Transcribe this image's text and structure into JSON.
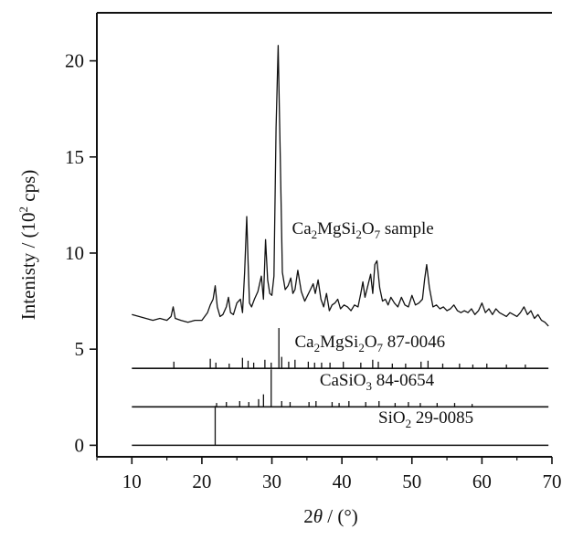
{
  "chart_data": {
    "type": "line",
    "xlabel_main": "2",
    "xlabel_italic": "θ",
    "xlabel_unit": " / (°)",
    "ylabel_main": "Intenisty / (10",
    "ylabel_sup": "2",
    "ylabel_tail": " cps)",
    "xlim": [
      5,
      70
    ],
    "ylim": [
      -0.6,
      22.5
    ],
    "xticks": [
      10,
      20,
      30,
      40,
      50,
      60,
      70
    ],
    "yticks": [
      0,
      5,
      10,
      15,
      20
    ],
    "series": [
      {
        "label_parts": [
          {
            "t": "Ca",
            "sub": false
          },
          {
            "t": "2",
            "sub": true
          },
          {
            "t": "MgSi",
            "sub": false
          },
          {
            "t": "2",
            "sub": true
          },
          {
            "t": "O",
            "sub": false
          },
          {
            "t": "7",
            "sub": true
          },
          {
            "t": " sample",
            "sub": false
          }
        ],
        "label_pos": [
          43.0,
          11.0
        ],
        "x": [
          10.0,
          11.0,
          12.0,
          13.0,
          14.0,
          15.0,
          15.6,
          15.9,
          16.2,
          17.0,
          18.0,
          19.0,
          20.0,
          20.8,
          21.2,
          21.6,
          21.9,
          22.2,
          22.6,
          23.0,
          23.5,
          23.8,
          24.1,
          24.5,
          25.0,
          25.5,
          25.8,
          26.1,
          26.4,
          26.6,
          26.8,
          27.1,
          27.5,
          28.0,
          28.5,
          28.8,
          29.1,
          29.4,
          29.7,
          30.0,
          30.3,
          30.6,
          30.9,
          31.2,
          31.5,
          31.9,
          32.3,
          32.7,
          33.0,
          33.3,
          33.7,
          34.2,
          34.7,
          35.1,
          35.5,
          35.9,
          36.2,
          36.6,
          37.0,
          37.4,
          37.8,
          38.2,
          38.6,
          39.0,
          39.4,
          39.8,
          40.3,
          40.8,
          41.3,
          41.8,
          42.3,
          42.7,
          43.0,
          43.3,
          43.7,
          44.1,
          44.4,
          44.7,
          45.0,
          45.4,
          45.8,
          46.2,
          46.6,
          47.0,
          47.5,
          48.0,
          48.5,
          49.0,
          49.5,
          50.0,
          50.5,
          51.0,
          51.5,
          51.8,
          52.1,
          52.5,
          53.0,
          53.5,
          54.0,
          54.5,
          55.0,
          55.5,
          56.0,
          56.5,
          57.0,
          57.5,
          58.0,
          58.5,
          59.0,
          59.5,
          60.0,
          60.5,
          61.0,
          61.5,
          62.0,
          62.5,
          63.0,
          63.5,
          64.0,
          64.5,
          65.0,
          65.5,
          66.0,
          66.5,
          67.0,
          67.5,
          68.0,
          68.5,
          69.0,
          69.5
        ],
        "y": [
          6.8,
          6.7,
          6.6,
          6.5,
          6.6,
          6.5,
          6.7,
          7.2,
          6.6,
          6.5,
          6.4,
          6.5,
          6.5,
          6.9,
          7.3,
          7.6,
          8.3,
          7.2,
          6.7,
          6.8,
          7.2,
          7.7,
          6.9,
          6.8,
          7.4,
          7.6,
          6.9,
          9.0,
          11.9,
          9.5,
          7.4,
          7.2,
          7.6,
          8.0,
          8.8,
          7.6,
          10.7,
          8.6,
          7.9,
          7.8,
          8.8,
          16.5,
          20.8,
          15.0,
          9.0,
          8.1,
          8.3,
          8.7,
          7.9,
          8.1,
          9.1,
          8.0,
          7.5,
          7.8,
          8.1,
          8.4,
          7.9,
          8.6,
          7.6,
          7.2,
          7.9,
          7.0,
          7.3,
          7.4,
          7.6,
          7.1,
          7.3,
          7.2,
          7.0,
          7.3,
          7.2,
          7.9,
          8.5,
          7.7,
          8.3,
          8.9,
          7.9,
          9.4,
          9.6,
          8.2,
          7.5,
          7.6,
          7.3,
          7.7,
          7.4,
          7.2,
          7.7,
          7.3,
          7.2,
          7.8,
          7.3,
          7.4,
          7.6,
          8.6,
          9.4,
          8.2,
          7.2,
          7.3,
          7.1,
          7.2,
          7.0,
          7.1,
          7.3,
          7.0,
          6.9,
          7.0,
          6.9,
          7.1,
          6.8,
          7.0,
          7.4,
          6.9,
          7.1,
          6.8,
          7.1,
          6.9,
          6.8,
          6.7,
          6.9,
          6.8,
          6.7,
          6.9,
          7.2,
          6.8,
          7.0,
          6.6,
          6.8,
          6.5,
          6.4,
          6.2
        ]
      },
      {
        "label_parts": [
          {
            "t": "Ca",
            "sub": false
          },
          {
            "t": "2",
            "sub": true
          },
          {
            "t": "MgSi",
            "sub": false
          },
          {
            "t": "2",
            "sub": true
          },
          {
            "t": "O",
            "sub": false
          },
          {
            "t": "7",
            "sub": true
          },
          {
            "t": " 87-0046",
            "sub": false
          }
        ],
        "label_pos": [
          44.0,
          5.1
        ],
        "baseline": 4.0,
        "peaks_x": [
          16.0,
          21.2,
          22.0,
          23.9,
          25.8,
          26.6,
          27.4,
          29.0,
          29.9,
          31.0,
          31.4,
          32.4,
          33.3,
          35.2,
          36.1,
          37.1,
          38.3,
          40.2,
          42.7,
          44.4,
          45.2,
          47.2,
          49.1,
          51.3,
          52.3,
          54.4,
          56.8,
          58.7,
          60.7,
          63.5,
          66.2
        ],
        "peaks_h": [
          0.35,
          0.5,
          0.3,
          0.25,
          0.55,
          0.4,
          0.3,
          0.45,
          0.3,
          2.1,
          0.6,
          0.35,
          0.45,
          0.35,
          0.3,
          0.3,
          0.3,
          0.35,
          0.3,
          0.45,
          0.35,
          0.25,
          0.25,
          0.35,
          0.4,
          0.25,
          0.25,
          0.2,
          0.25,
          0.2,
          0.2
        ]
      },
      {
        "label_parts": [
          {
            "t": "CaSiO",
            "sub": false
          },
          {
            "t": "3",
            "sub": true
          },
          {
            "t": " 84-0654",
            "sub": false
          }
        ],
        "label_pos": [
          45.0,
          3.1
        ],
        "baseline": 2.0,
        "peaks_x": [
          22.1,
          23.5,
          25.4,
          26.7,
          28.1,
          28.8,
          29.9,
          31.4,
          32.6,
          35.3,
          36.3,
          38.6,
          39.6,
          41.0,
          43.4,
          45.3,
          47.6,
          49.5,
          51.2,
          53.6,
          56.1,
          58.6
        ],
        "peaks_h": [
          0.2,
          0.25,
          0.3,
          0.25,
          0.4,
          0.65,
          1.95,
          0.3,
          0.25,
          0.25,
          0.3,
          0.25,
          0.2,
          0.3,
          0.25,
          0.3,
          0.2,
          0.25,
          0.2,
          0.2,
          0.2,
          0.15
        ]
      },
      {
        "label_parts": [
          {
            "t": "SiO",
            "sub": false
          },
          {
            "t": "2",
            "sub": true
          },
          {
            "t": " 29-0085",
            "sub": false
          }
        ],
        "label_pos": [
          52.0,
          1.15
        ],
        "baseline": 0.0,
        "peaks_x": [
          21.9
        ],
        "peaks_h": [
          2.05
        ]
      }
    ],
    "grid": false,
    "legend": "none"
  }
}
